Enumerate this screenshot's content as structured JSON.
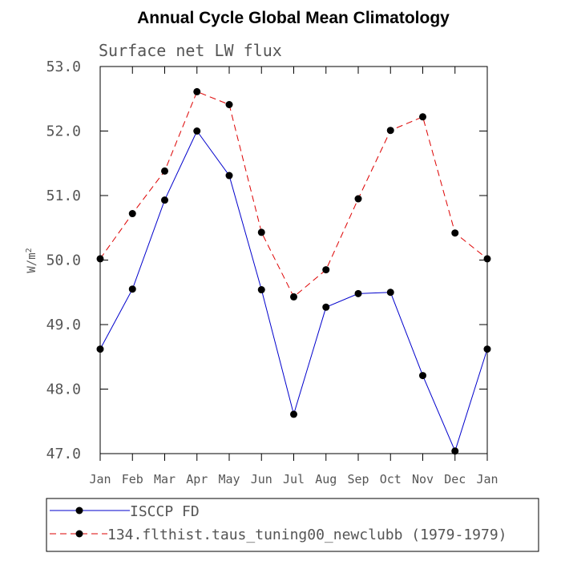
{
  "chart_data": {
    "type": "line",
    "title": "Annual Cycle Global Mean Climatology",
    "subtitle": "Surface net LW flux",
    "ylabel": "W/m",
    "ylabel_superscript": "2",
    "xlabel": "",
    "categories": [
      "Jan",
      "Feb",
      "Mar",
      "Apr",
      "May",
      "Jun",
      "Jul",
      "Aug",
      "Sep",
      "Oct",
      "Nov",
      "Dec",
      "Jan"
    ],
    "ylim": [
      47.0,
      53.0
    ],
    "yticks": [
      "47.0",
      "48.0",
      "49.0",
      "50.0",
      "51.0",
      "52.0",
      "53.0"
    ],
    "series": [
      {
        "name": "ISCCP FD",
        "color": "#0000cc",
        "dash": "solid",
        "values": [
          48.62,
          49.55,
          50.93,
          52.0,
          51.31,
          49.54,
          47.61,
          49.27,
          49.48,
          49.5,
          48.21,
          47.04,
          48.62
        ]
      },
      {
        "name": "134.flthist.taus_tuning00_newclubb (1979-1979)",
        "color": "#dd0000",
        "dash": "dashed",
        "values": [
          50.02,
          50.72,
          51.38,
          52.61,
          52.41,
          50.43,
          49.43,
          49.85,
          50.95,
          52.01,
          52.22,
          50.42,
          50.02
        ]
      }
    ],
    "grid": false,
    "legend_position": "bottom"
  }
}
